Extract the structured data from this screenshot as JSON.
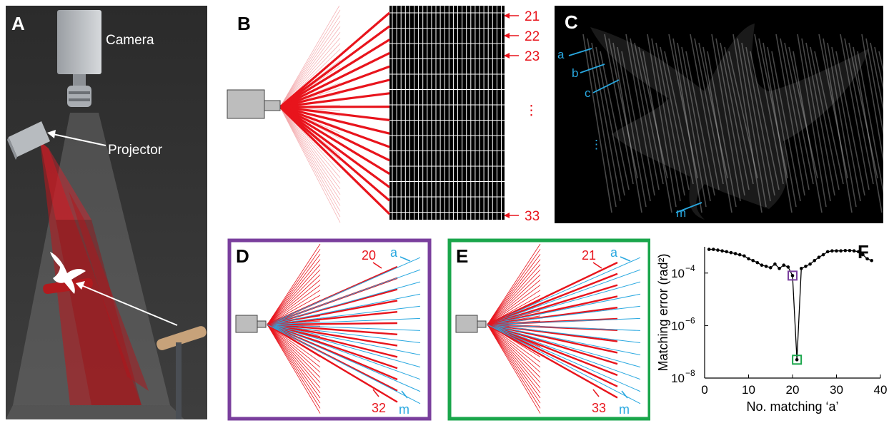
{
  "panels": {
    "A": {
      "label": "A",
      "camera_label": "Camera",
      "projector_label": "Projector"
    },
    "B": {
      "label": "B",
      "stripe_labels": [
        "21",
        "22",
        "23",
        "⋮",
        "33"
      ]
    },
    "C": {
      "label": "C",
      "stripe_labels": [
        "a",
        "b",
        "c",
        "⋮",
        "m"
      ]
    },
    "D": {
      "label": "D",
      "red_top": "20",
      "red_bottom": "32",
      "blue_top": "a",
      "blue_bottom": "m",
      "frame_color": "#7a3f9d"
    },
    "E": {
      "label": "E",
      "red_top": "21",
      "red_bottom": "33",
      "blue_top": "a",
      "blue_bottom": "m",
      "frame_color": "#1aa64b"
    },
    "F": {
      "label": "F"
    }
  },
  "colors": {
    "red": "#e8141c",
    "blue": "#29a8e0",
    "purple": "#7a3f9d",
    "green": "#1aa64b"
  },
  "chart_data": {
    "type": "line",
    "xlabel": "No. matching ‘a’",
    "ylabel": "Matching error (rad²)",
    "xlim": [
      0,
      40
    ],
    "ylim_log10": [
      -8,
      -3
    ],
    "yscale": "log",
    "xticks": [
      "0",
      "10",
      "20",
      "30",
      "40"
    ],
    "yticks": [
      "10",
      "10",
      "10"
    ],
    "ytick_exponents": [
      "−4",
      "−6",
      "−8"
    ],
    "ytick_values": [
      0.0001,
      1e-06,
      1e-08
    ],
    "x": [
      1,
      2,
      3,
      4,
      5,
      6,
      7,
      8,
      9,
      10,
      11,
      12,
      13,
      14,
      15,
      16,
      17,
      18,
      19,
      20,
      21,
      22,
      23,
      24,
      25,
      26,
      27,
      28,
      29,
      30,
      31,
      32,
      33,
      34,
      35,
      36,
      37,
      38
    ],
    "y": [
      0.0008,
      0.0008,
      0.00075,
      0.0007,
      0.00065,
      0.0006,
      0.00055,
      0.0005,
      0.00045,
      0.00035,
      0.0003,
      0.00025,
      0.0002,
      0.00018,
      0.00016,
      0.00022,
      0.00015,
      0.0002,
      0.00017,
      8e-05,
      5e-08,
      0.00015,
      0.00018,
      0.00022,
      0.0003,
      0.0004,
      0.0005,
      0.00065,
      0.0007,
      0.0007,
      0.0007,
      0.00072,
      0.00072,
      0.0007,
      0.00065,
      0.0005,
      0.00035,
      0.0003
    ],
    "highlight": [
      {
        "x": 20,
        "y": 8e-05,
        "color": "#7a3f9d"
      },
      {
        "x": 21,
        "y": 5e-08,
        "color": "#1aa64b"
      }
    ]
  }
}
